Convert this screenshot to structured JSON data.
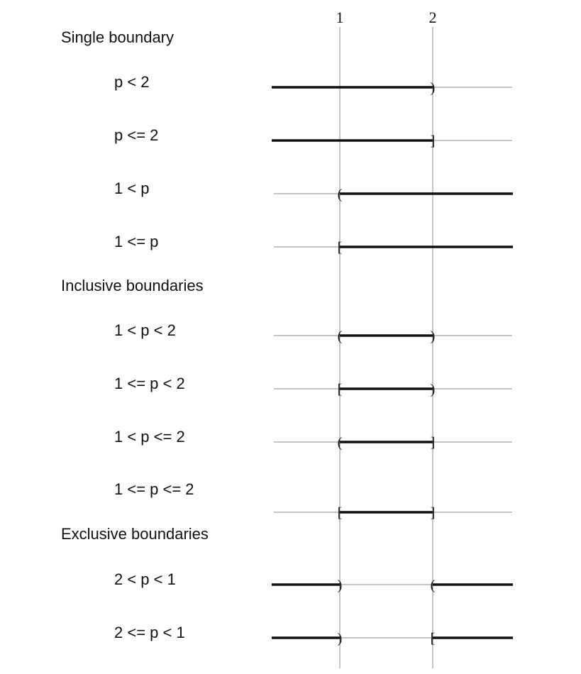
{
  "ticks": [
    {
      "label": "1",
      "value": 1
    },
    {
      "label": "2",
      "value": 2
    }
  ],
  "sections": [
    {
      "title": "Single boundary",
      "rows": [
        {
          "label": "p < 2",
          "segments": [
            {
              "from": "min",
              "to": 2
            }
          ],
          "markers": [
            {
              "at": 2,
              "glyph": ")"
            }
          ]
        },
        {
          "label": "p <= 2",
          "segments": [
            {
              "from": "min",
              "to": 2
            }
          ],
          "markers": [
            {
              "at": 2,
              "glyph": "]"
            }
          ]
        },
        {
          "label": "1 < p",
          "segments": [
            {
              "from": 1,
              "to": "max"
            }
          ],
          "markers": [
            {
              "at": 1,
              "glyph": "("
            }
          ]
        },
        {
          "label": "1 <= p",
          "segments": [
            {
              "from": 1,
              "to": "max"
            }
          ],
          "markers": [
            {
              "at": 1,
              "glyph": "["
            }
          ]
        }
      ]
    },
    {
      "title": "Inclusive boundaries",
      "rows": [
        {
          "label": "1 < p < 2",
          "segments": [
            {
              "from": 1,
              "to": 2
            }
          ],
          "markers": [
            {
              "at": 1,
              "glyph": "("
            },
            {
              "at": 2,
              "glyph": ")"
            }
          ]
        },
        {
          "label": "1 <= p < 2",
          "segments": [
            {
              "from": 1,
              "to": 2
            }
          ],
          "markers": [
            {
              "at": 1,
              "glyph": "["
            },
            {
              "at": 2,
              "glyph": ")"
            }
          ]
        },
        {
          "label": "1 < p <= 2",
          "segments": [
            {
              "from": 1,
              "to": 2
            }
          ],
          "markers": [
            {
              "at": 1,
              "glyph": "("
            },
            {
              "at": 2,
              "glyph": "]"
            }
          ]
        },
        {
          "label": "1 <= p <= 2",
          "segments": [
            {
              "from": 1,
              "to": 2
            }
          ],
          "markers": [
            {
              "at": 1,
              "glyph": "["
            },
            {
              "at": 2,
              "glyph": "]"
            }
          ]
        }
      ]
    },
    {
      "title": "Exclusive boundaries",
      "rows": [
        {
          "label": "2 < p < 1",
          "segments": [
            {
              "from": "min",
              "to": 1
            },
            {
              "from": 2,
              "to": "max"
            }
          ],
          "markers": [
            {
              "at": 1,
              "glyph": ")"
            },
            {
              "at": 2,
              "glyph": "("
            }
          ]
        },
        {
          "label": "2 <= p < 1",
          "segments": [
            {
              "from": "min",
              "to": 1
            },
            {
              "from": 2,
              "to": "max"
            }
          ],
          "markers": [
            {
              "at": 1,
              "glyph": ")"
            },
            {
              "at": 2,
              "glyph": "["
            }
          ]
        }
      ]
    }
  ],
  "colors": {
    "line": "#111111",
    "axis": "#888888",
    "text": "#111111"
  }
}
